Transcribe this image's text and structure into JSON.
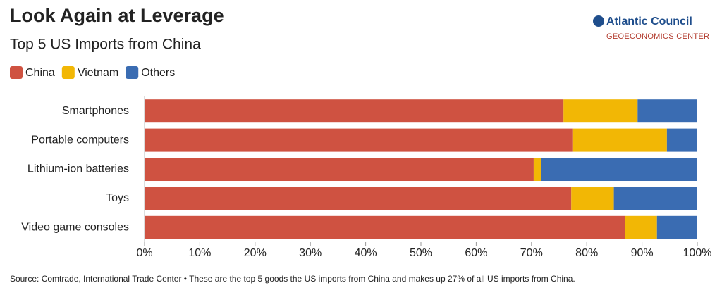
{
  "chart_data": {
    "type": "stacked_barh",
    "title": "Look Again at Leverage",
    "subtitle": "Top 5 US Imports from China",
    "brand": "Atlantic Council",
    "brand_subtitle": "GEOECONOMICS CENTER",
    "source": "Source: Comtrade, International Trade Center • These are the top 5 goods the US imports from China and makes up 27% of all US imports from China.",
    "categories": [
      "Smartphones",
      "Portable computers",
      "Lithium-ion batteries",
      "Toys",
      "Video game consoles"
    ],
    "series": [
      {
        "name": "China",
        "color": "#cf5241",
        "values": [
          75.8,
          77.4,
          70.4,
          77.2,
          86.9
        ]
      },
      {
        "name": "Vietnam",
        "color": "#f2b705",
        "values": [
          13.4,
          17.1,
          1.3,
          7.7,
          5.8
        ]
      },
      {
        "name": "Others",
        "color": "#3a6cb2",
        "values": [
          10.8,
          5.5,
          28.3,
          15.1,
          7.3
        ]
      }
    ],
    "xlim": [
      0,
      100
    ],
    "xticks": [
      {
        "value": 0,
        "label": "0%"
      },
      {
        "value": 10,
        "label": "10%"
      },
      {
        "value": 20,
        "label": "20%"
      },
      {
        "value": 30,
        "label": "30%"
      },
      {
        "value": 40,
        "label": "40%"
      },
      {
        "value": 50,
        "label": "50%"
      },
      {
        "value": 60,
        "label": "60%"
      },
      {
        "value": 70,
        "label": "70%"
      },
      {
        "value": 80,
        "label": "80%"
      },
      {
        "value": 90,
        "label": "90%"
      },
      {
        "value": 100,
        "label": "100%"
      }
    ],
    "legend": "top-left"
  }
}
